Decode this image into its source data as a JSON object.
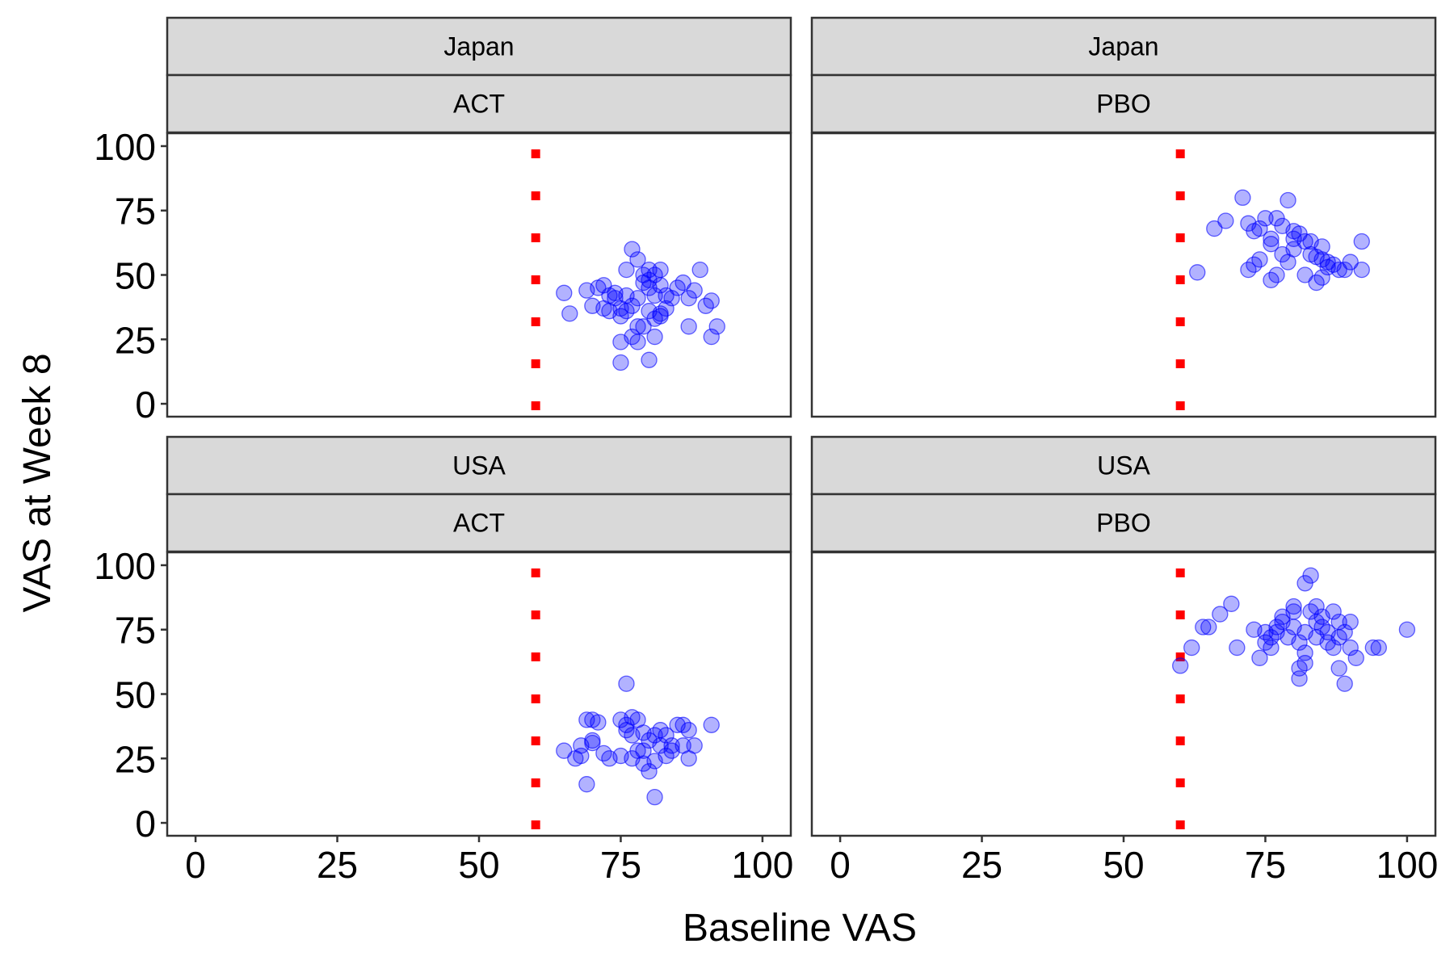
{
  "chart_data": {
    "type": "scatter",
    "xlabel": "Baseline VAS",
    "ylabel": "VAS at Week 8",
    "xlim": [
      -5,
      105
    ],
    "ylim": [
      -5,
      105
    ],
    "x_ticks": [
      0,
      25,
      50,
      75,
      100
    ],
    "y_ticks": [
      0,
      25,
      50,
      75,
      100
    ],
    "grid": false,
    "threshold_line": {
      "x": 60,
      "style": "dotted",
      "color": "#ff0000"
    },
    "point_color": "#0000ff",
    "strip_fill": "#d9d9d9",
    "panels": [
      {
        "id": "japan-act",
        "strips": [
          "Japan",
          "ACT"
        ],
        "points": [
          [
            65,
            43
          ],
          [
            66,
            35
          ],
          [
            69,
            44
          ],
          [
            70,
            38
          ],
          [
            71,
            45
          ],
          [
            72,
            46
          ],
          [
            73,
            42
          ],
          [
            74,
            41
          ],
          [
            72,
            37
          ],
          [
            73,
            36
          ],
          [
            74,
            43
          ],
          [
            75,
            37
          ],
          [
            75,
            34
          ],
          [
            76,
            36
          ],
          [
            77,
            38
          ],
          [
            78,
            41
          ],
          [
            79,
            47
          ],
          [
            80,
            45
          ],
          [
            81,
            42
          ],
          [
            82,
            46
          ],
          [
            83,
            37
          ],
          [
            84,
            41
          ],
          [
            85,
            45
          ],
          [
            86,
            47
          ],
          [
            87,
            41
          ],
          [
            88,
            44
          ],
          [
            89,
            52
          ],
          [
            90,
            38
          ],
          [
            91,
            40
          ],
          [
            92,
            30
          ],
          [
            91,
            26
          ],
          [
            87,
            30
          ],
          [
            76,
            52
          ],
          [
            77,
            60
          ],
          [
            78,
            56
          ],
          [
            79,
            50
          ],
          [
            80,
            48
          ],
          [
            81,
            50
          ],
          [
            82,
            52
          ],
          [
            80,
            36
          ],
          [
            81,
            33
          ],
          [
            82,
            35
          ],
          [
            79,
            30
          ],
          [
            78,
            30
          ],
          [
            77,
            26
          ],
          [
            75,
            24
          ],
          [
            75,
            16
          ],
          [
            80,
            17
          ],
          [
            81,
            26
          ],
          [
            78,
            24
          ],
          [
            82,
            34
          ],
          [
            83,
            42
          ],
          [
            76,
            42
          ],
          [
            80,
            52
          ]
        ]
      },
      {
        "id": "japan-pbo",
        "strips": [
          "Japan",
          "PBO"
        ],
        "points": [
          [
            63,
            51
          ],
          [
            66,
            68
          ],
          [
            68,
            71
          ],
          [
            71,
            80
          ],
          [
            72,
            70
          ],
          [
            73,
            67
          ],
          [
            74,
            68
          ],
          [
            75,
            72
          ],
          [
            76,
            62
          ],
          [
            77,
            72
          ],
          [
            78,
            69
          ],
          [
            79,
            79
          ],
          [
            80,
            64
          ],
          [
            81,
            66
          ],
          [
            82,
            63
          ],
          [
            83,
            63
          ],
          [
            84,
            57
          ],
          [
            85,
            61
          ],
          [
            86,
            55
          ],
          [
            87,
            54
          ],
          [
            88,
            52
          ],
          [
            89,
            52
          ],
          [
            90,
            55
          ],
          [
            92,
            63
          ],
          [
            92,
            52
          ],
          [
            72,
            52
          ],
          [
            73,
            54
          ],
          [
            74,
            56
          ],
          [
            76,
            48
          ],
          [
            77,
            50
          ],
          [
            78,
            58
          ],
          [
            79,
            55
          ],
          [
            80,
            67
          ],
          [
            82,
            50
          ],
          [
            84,
            47
          ],
          [
            85,
            49
          ],
          [
            86,
            53
          ],
          [
            76,
            64
          ],
          [
            80,
            60
          ],
          [
            83,
            58
          ],
          [
            85,
            56
          ]
        ]
      },
      {
        "id": "usa-act",
        "strips": [
          "USA",
          "ACT"
        ],
        "points": [
          [
            65,
            28
          ],
          [
            67,
            25
          ],
          [
            68,
            30
          ],
          [
            68,
            26
          ],
          [
            69,
            15
          ],
          [
            69,
            40
          ],
          [
            70,
            40
          ],
          [
            70,
            32
          ],
          [
            71,
            39
          ],
          [
            72,
            27
          ],
          [
            73,
            25
          ],
          [
            75,
            40
          ],
          [
            76,
            38
          ],
          [
            76,
            54
          ],
          [
            76,
            36
          ],
          [
            77,
            41
          ],
          [
            77,
            34
          ],
          [
            77,
            25
          ],
          [
            78,
            40
          ],
          [
            78,
            28
          ],
          [
            79,
            28
          ],
          [
            79,
            23
          ],
          [
            80,
            20
          ],
          [
            80,
            32
          ],
          [
            81,
            34
          ],
          [
            81,
            24
          ],
          [
            81,
            10
          ],
          [
            82,
            36
          ],
          [
            82,
            30
          ],
          [
            83,
            26
          ],
          [
            83,
            34
          ],
          [
            84,
            28
          ],
          [
            84,
            30
          ],
          [
            85,
            38
          ],
          [
            86,
            38
          ],
          [
            86,
            30
          ],
          [
            87,
            25
          ],
          [
            87,
            36
          ],
          [
            88,
            30
          ],
          [
            91,
            38
          ],
          [
            75,
            26
          ],
          [
            79,
            35
          ],
          [
            70,
            31
          ]
        ]
      },
      {
        "id": "usa-pbo",
        "strips": [
          "USA",
          "PBO"
        ],
        "points": [
          [
            60,
            61
          ],
          [
            62,
            68
          ],
          [
            64,
            76
          ],
          [
            65,
            76
          ],
          [
            67,
            81
          ],
          [
            69,
            85
          ],
          [
            70,
            68
          ],
          [
            73,
            75
          ],
          [
            74,
            64
          ],
          [
            75,
            70
          ],
          [
            75,
            74
          ],
          [
            76,
            68
          ],
          [
            76,
            72
          ],
          [
            77,
            74
          ],
          [
            77,
            76
          ],
          [
            78,
            78
          ],
          [
            78,
            80
          ],
          [
            79,
            72
          ],
          [
            80,
            82
          ],
          [
            80,
            84
          ],
          [
            81,
            70
          ],
          [
            81,
            60
          ],
          [
            81,
            56
          ],
          [
            82,
            62
          ],
          [
            82,
            66
          ],
          [
            82,
            93
          ],
          [
            83,
            96
          ],
          [
            83,
            82
          ],
          [
            84,
            84
          ],
          [
            84,
            78
          ],
          [
            85,
            80
          ],
          [
            85,
            76
          ],
          [
            86,
            70
          ],
          [
            86,
            74
          ],
          [
            87,
            82
          ],
          [
            87,
            68
          ],
          [
            88,
            72
          ],
          [
            88,
            78
          ],
          [
            88,
            60
          ],
          [
            89,
            54
          ],
          [
            89,
            74
          ],
          [
            90,
            68
          ],
          [
            90,
            78
          ],
          [
            91,
            64
          ],
          [
            94,
            68
          ],
          [
            95,
            68
          ],
          [
            100,
            75
          ],
          [
            84,
            72
          ],
          [
            80,
            76
          ],
          [
            82,
            74
          ]
        ]
      }
    ]
  }
}
